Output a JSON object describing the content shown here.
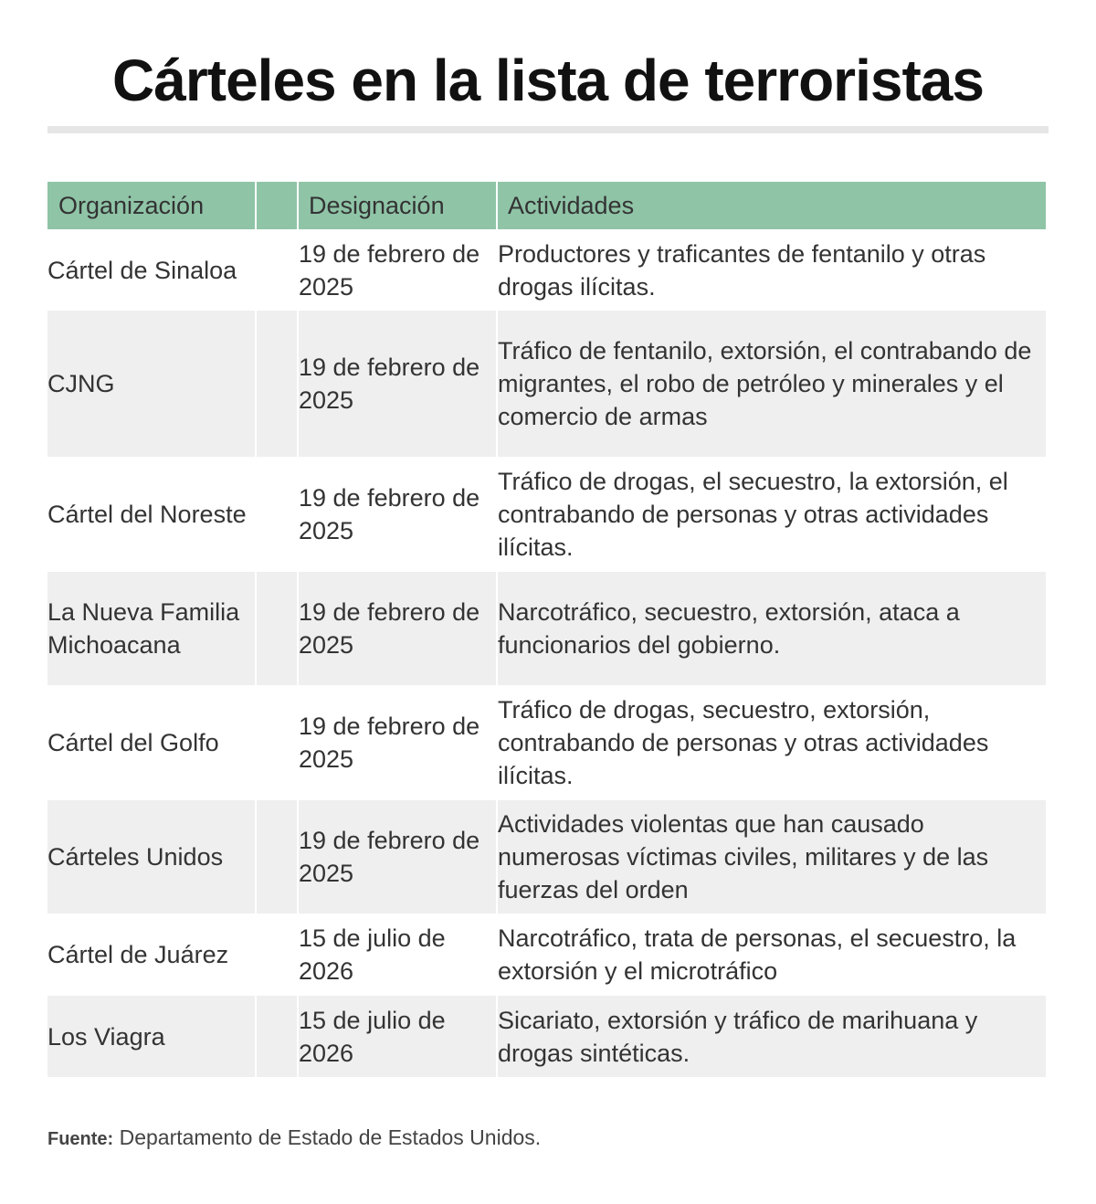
{
  "title": "Cárteles en la lista de terroristas",
  "headers": {
    "organization": "Organización",
    "blank": "",
    "designation": "Designación",
    "activities": "Actividades"
  },
  "rows": [
    {
      "organization": "Cártel de Sinaloa",
      "designation": "19 de febrero de 2025",
      "activities": "Productores y traficantes de fentanilo y otras drogas ilícitas."
    },
    {
      "organization": "CJNG",
      "designation": "19 de febrero de 2025",
      "activities": "Tráfico de fentanilo, extorsión, el contrabando de migrantes, el robo de petróleo y minerales y el comercio de armas"
    },
    {
      "organization": "Cártel del Noreste",
      "designation": "19 de febrero de 2025",
      "activities": "Tráfico de drogas, el secuestro, la extorsión, el contrabando de personas y otras actividades ilícitas."
    },
    {
      "organization": "La Nueva Familia Michoacana",
      "designation": "19 de febrero de 2025",
      "activities": "Narcotráfico, secuestro, extorsión, ataca a funcionarios del gobierno."
    },
    {
      "organization": "Cártel del Golfo",
      "designation": "19 de febrero de 2025",
      "activities": "Tráfico de drogas, secuestro, extorsión, contrabando de personas y otras actividades ilícitas."
    },
    {
      "organization": "Cárteles Unidos",
      "designation": "19 de febrero de 2025",
      "activities": "Actividades violentas que han causado numerosas víctimas civiles, militares y de las fuerzas del orden"
    },
    {
      "organization": "Cártel de Juárez",
      "designation": "15 de julio de 2026",
      "activities": "Narcotráfico, trata de personas, el secuestro, la extorsión y el microtráfico"
    },
    {
      "organization": "Los Viagra",
      "designation": "15 de julio de 2026",
      "activities": "Sicariato, extorsión y tráfico de marihuana y drogas sintéticas."
    }
  ],
  "source": {
    "label": "Fuente:",
    "text": "Departamento de Estado de Estados Unidos."
  },
  "colors": {
    "header_bg": "#8fc4a7",
    "alt_row_bg": "#efefef",
    "rule": "#e6e6e6"
  }
}
